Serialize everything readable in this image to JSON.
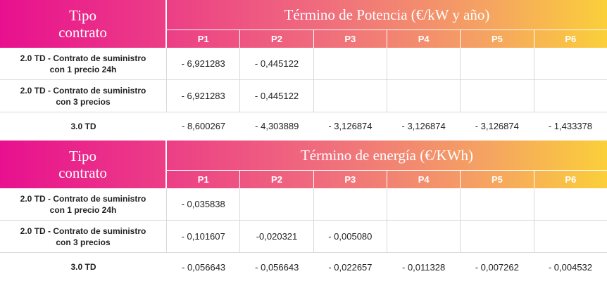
{
  "sections": [
    {
      "tipo_line1": "Tipo",
      "tipo_line2": "contrato",
      "title": "Término de Potencia (€/kW y año)",
      "periods": [
        "P1",
        "P2",
        "P3",
        "P4",
        "P5",
        "P6"
      ],
      "rows": [
        {
          "label_line1": "2.0 TD - Contrato de suministro",
          "label_line2": "con 1 precio 24h",
          "values": [
            "- 6,921283",
            "- 0,445122",
            "",
            "",
            "",
            ""
          ]
        },
        {
          "label_line1": "2.0 TD - Contrato de suministro",
          "label_line2": "con 3 precios",
          "values": [
            "- 6,921283",
            "- 0,445122",
            "",
            "",
            "",
            ""
          ]
        },
        {
          "label_line1": "3.0 TD",
          "label_line2": "",
          "values": [
            "- 8,600267",
            "- 4,303889",
            "- 3,126874",
            "- 3,126874",
            "- 3,126874",
            "- 1,433378"
          ]
        }
      ]
    },
    {
      "tipo_line1": "Tipo",
      "tipo_line2": "contrato",
      "title": "Término de energía (€/KWh)",
      "periods": [
        "P1",
        "P2",
        "P3",
        "P4",
        "P5",
        "P6"
      ],
      "rows": [
        {
          "label_line1": "2.0 TD - Contrato de suministro",
          "label_line2": "con 1 precio 24h",
          "values": [
            "- 0,035838",
            "",
            "",
            "",
            "",
            ""
          ]
        },
        {
          "label_line1": "2.0 TD - Contrato de suministro",
          "label_line2": "con 3 precios",
          "values": [
            "- 0,101607",
            "-0,020321",
            "- 0,005080",
            "",
            "",
            ""
          ]
        },
        {
          "label_line1": "3.0 TD",
          "label_line2": "",
          "values": [
            "- 0,056643",
            "- 0,056643",
            "- 0,022657",
            "- 0,011328",
            "- 0,007262",
            "- 0,004532"
          ]
        }
      ]
    }
  ]
}
